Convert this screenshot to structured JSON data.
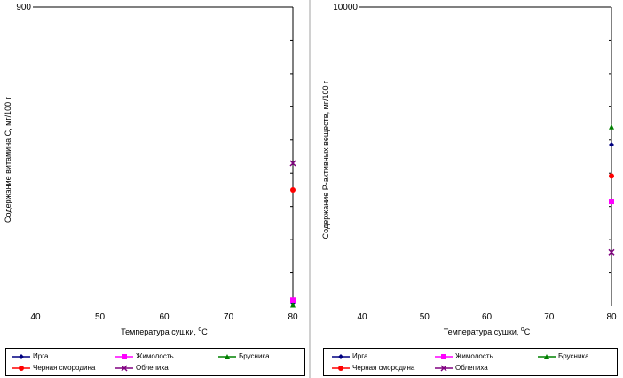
{
  "chart_data": [
    {
      "type": "scatter",
      "ylabel": "Содержание витамина С,  мг/100 г",
      "xlabel": "Температура сушки, ",
      "xlabel_unit_sup": "о",
      "xlabel_unit": "С",
      "xlim": [
        40,
        80
      ],
      "ylim": [
        0,
        900
      ],
      "x_ticks": [
        "40",
        "50",
        "60",
        "70",
        "80"
      ],
      "y_tick_labels": [
        "900"
      ],
      "series": [
        {
          "name": "Ирга",
          "color": "#000080",
          "marker": "diamond",
          "x": [
            80
          ],
          "y": [
            8
          ]
        },
        {
          "name": "Жимолость",
          "color": "#ff00ff",
          "marker": "square",
          "x": [
            80
          ],
          "y": [
            18
          ]
        },
        {
          "name": "Брусника",
          "color": "#008000",
          "marker": "triangle",
          "x": [
            80
          ],
          "y": [
            4
          ]
        },
        {
          "name": "Черная  смородина",
          "color": "#ff0000",
          "marker": "circle",
          "x": [
            80
          ],
          "y": [
            350
          ]
        },
        {
          "name": "Облепиха",
          "color": "#800080",
          "marker": "x",
          "x": [
            80
          ],
          "y": [
            430
          ]
        }
      ]
    },
    {
      "type": "scatter",
      "ylabel": "Содержание Р-активных веществ, мг/100 г",
      "xlabel": "Температура сушки, ",
      "xlabel_unit_sup": "о",
      "xlabel_unit": "С",
      "xlim": [
        40,
        80
      ],
      "ylim": [
        0,
        10000
      ],
      "x_ticks": [
        "40",
        "50",
        "60",
        "70",
        "80"
      ],
      "y_tick_labels": [
        "10000"
      ],
      "series": [
        {
          "name": "Ирга",
          "color": "#000080",
          "marker": "diamond",
          "x": [
            80
          ],
          "y": [
            5400
          ]
        },
        {
          "name": "Жимолость",
          "color": "#ff00ff",
          "marker": "square",
          "x": [
            80
          ],
          "y": [
            3500
          ]
        },
        {
          "name": "Брусника",
          "color": "#008000",
          "marker": "triangle",
          "x": [
            80
          ],
          "y": [
            6000
          ]
        },
        {
          "name": "Черная  смородина",
          "color": "#ff0000",
          "marker": "circle",
          "x": [
            80
          ],
          "y": [
            4350
          ]
        },
        {
          "name": "Облепиха",
          "color": "#800080",
          "marker": "x",
          "x": [
            80
          ],
          "y": [
            1800
          ]
        }
      ]
    }
  ]
}
